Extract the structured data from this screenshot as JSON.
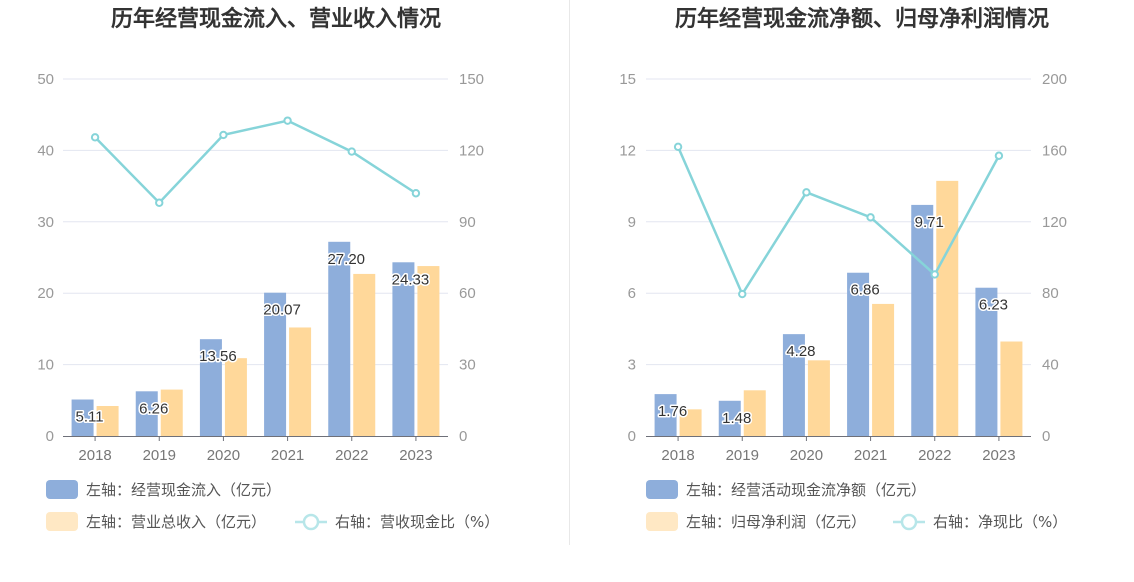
{
  "chart_data": [
    {
      "type": "bar",
      "title": "历年经营现金流入、营业收入情况",
      "categories": [
        "2018",
        "2019",
        "2020",
        "2021",
        "2022",
        "2023"
      ],
      "left_axis": {
        "ylim": [
          0,
          50
        ],
        "ticks": [
          "0",
          "10",
          "20",
          "30",
          "40",
          "50"
        ]
      },
      "right_axis": {
        "ylim": [
          0,
          150
        ],
        "ticks": [
          "0",
          "30",
          "60",
          "90",
          "120",
          "150"
        ]
      },
      "series": [
        {
          "name": "左轴：经营现金流入（亿元）",
          "type": "bar",
          "axis": "left",
          "color": "#8EAEDB",
          "values": [
            5.11,
            6.26,
            13.56,
            20.07,
            27.2,
            24.33
          ],
          "labels": [
            "5.11",
            "6.26",
            "13.56",
            "20.07",
            "27.20",
            "24.33"
          ]
        },
        {
          "name": "左轴：营业总收入（亿元）",
          "type": "bar",
          "axis": "left",
          "color": "#FFD89A",
          "values": [
            4.2,
            6.5,
            10.9,
            15.2,
            22.7,
            23.8
          ]
        },
        {
          "name": "右轴：营收现金比（%）",
          "type": "line",
          "axis": "right",
          "color": "#86D4D9",
          "values": [
            125.5,
            98,
            126.5,
            132.5,
            119.5,
            102
          ]
        }
      ],
      "legend": "bottom",
      "grid": true
    },
    {
      "type": "bar",
      "title": "历年经营现金流净额、归母净利润情况",
      "categories": [
        "2018",
        "2019",
        "2020",
        "2021",
        "2022",
        "2023"
      ],
      "left_axis": {
        "ylim": [
          0,
          15
        ],
        "ticks": [
          "0",
          "3",
          "6",
          "9",
          "12",
          "15"
        ]
      },
      "right_axis": {
        "ylim": [
          0,
          200
        ],
        "ticks": [
          "0",
          "40",
          "80",
          "120",
          "160",
          "200"
        ]
      },
      "series": [
        {
          "name": "左轴：经营活动现金流净额（亿元）",
          "type": "bar",
          "axis": "left",
          "color": "#8EAEDB",
          "values": [
            1.76,
            1.48,
            4.28,
            6.86,
            9.71,
            6.23
          ],
          "labels": [
            "1.76",
            "1.48",
            "4.28",
            "6.86",
            "9.71",
            "6.23"
          ]
        },
        {
          "name": "左轴：归母净利润（亿元）",
          "type": "bar",
          "axis": "left",
          "color": "#FFD89A",
          "values": [
            1.12,
            1.92,
            3.18,
            5.55,
            10.72,
            3.97
          ]
        },
        {
          "name": "右轴：净现比（%）",
          "type": "line",
          "axis": "right",
          "color": "#86D4D9",
          "values": [
            162,
            79.5,
            136.5,
            122.5,
            90.5,
            157
          ]
        }
      ],
      "legend": "bottom",
      "grid": true
    }
  ]
}
